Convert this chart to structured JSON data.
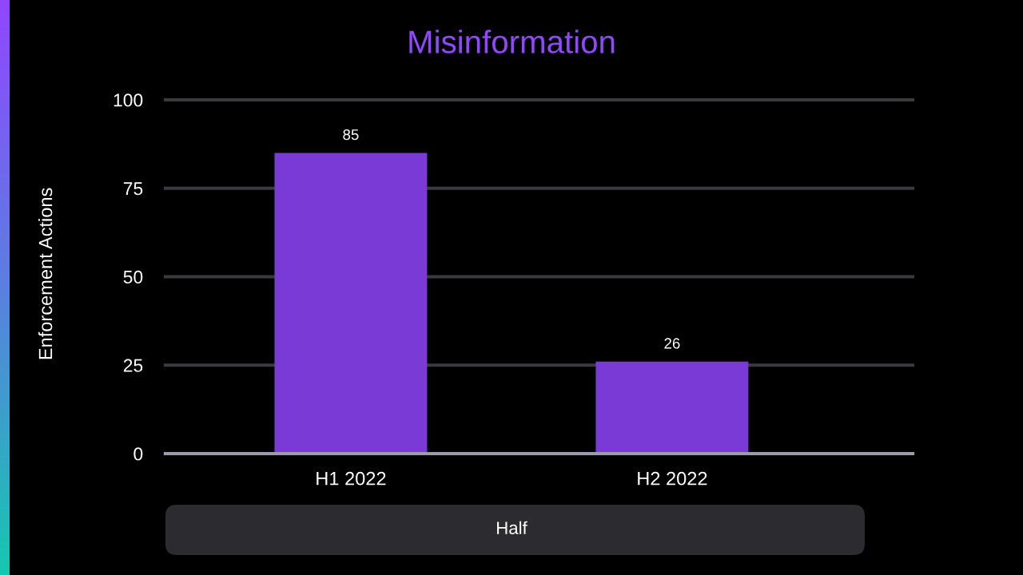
{
  "chart_data": {
    "type": "bar",
    "title": "Misinformation",
    "xlabel": "Half",
    "ylabel": "Enforcement Actions",
    "categories": [
      "H1 2022",
      "H2 2022"
    ],
    "values": [
      85,
      26
    ],
    "color": "#7a3ad6",
    "ylim": [
      0,
      100
    ],
    "yticks": [
      0,
      25,
      50,
      75,
      100
    ],
    "grid": "y",
    "data_labels": true
  }
}
